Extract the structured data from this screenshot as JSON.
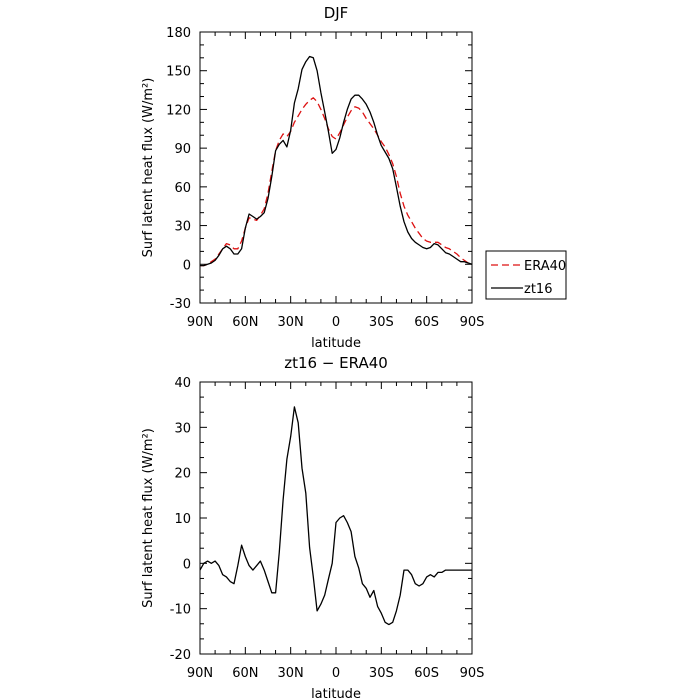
{
  "chart_data": [
    {
      "type": "line",
      "title": "DJF",
      "xlabel": "latitude",
      "ylabel": "Surf latent heat flux (W/m²)",
      "xlim": [
        90,
        -90
      ],
      "ylim": [
        -30,
        180
      ],
      "yticks": [
        -30,
        0,
        30,
        60,
        90,
        120,
        150,
        180
      ],
      "xticks": [
        {
          "value": 90,
          "label": "90N"
        },
        {
          "value": 60,
          "label": "60N"
        },
        {
          "value": 30,
          "label": "30N"
        },
        {
          "value": 0,
          "label": "0"
        },
        {
          "value": -30,
          "label": "30S"
        },
        {
          "value": -60,
          "label": "60S"
        },
        {
          "value": -90,
          "label": "90S"
        }
      ],
      "legend": "outside-right",
      "series": [
        {
          "name": "ERA40",
          "color": "#dd1111",
          "dash": true,
          "x": [
            90,
            87.5,
            85,
            82.5,
            80,
            77.5,
            75,
            72.5,
            70,
            67.5,
            65,
            62.5,
            60,
            57.5,
            55,
            52.5,
            50,
            47.5,
            45,
            42.5,
            40,
            37.5,
            35,
            32.5,
            30,
            27.5,
            25,
            22.5,
            20,
            17.5,
            15,
            12.5,
            10,
            7.5,
            5,
            2.5,
            0,
            -2.5,
            -5,
            -7.5,
            -10,
            -12.5,
            -15,
            -17.5,
            -20,
            -22.5,
            -25,
            -27.5,
            -30,
            -32.5,
            -35,
            -37.5,
            -40,
            -42.5,
            -45,
            -47.5,
            -50,
            -52.5,
            -55,
            -57.5,
            -60,
            -62.5,
            -65,
            -67.5,
            -70,
            -72.5,
            -75,
            -77.5,
            -80,
            -82.5,
            -85,
            -87.5,
            -90
          ],
          "y": [
            -1,
            -1,
            0,
            2,
            4,
            8,
            12,
            16,
            15,
            12,
            12,
            18,
            28,
            36,
            35,
            34,
            38,
            43,
            55,
            72,
            88,
            96,
            101,
            99,
            103,
            110,
            115,
            120,
            124,
            127,
            129,
            126,
            120,
            113,
            105,
            99,
            97,
            102,
            108,
            114,
            119,
            122,
            121,
            118,
            113,
            109,
            105,
            100,
            95,
            91,
            85,
            78,
            68,
            55,
            45,
            38,
            33,
            28,
            24,
            20,
            18,
            17,
            17,
            17,
            15,
            13,
            12,
            10,
            8,
            5,
            3,
            1,
            0
          ]
        },
        {
          "name": "zt16",
          "color": "#000000",
          "dash": false,
          "x": [
            90,
            87.5,
            85,
            82.5,
            80,
            77.5,
            75,
            72.5,
            70,
            67.5,
            65,
            62.5,
            60,
            57.5,
            55,
            52.5,
            50,
            47.5,
            45,
            42.5,
            40,
            37.5,
            35,
            32.5,
            30,
            27.5,
            25,
            22.5,
            20,
            17.5,
            15,
            12.5,
            10,
            7.5,
            5,
            2.5,
            0,
            -2.5,
            -5,
            -7.5,
            -10,
            -12.5,
            -15,
            -17.5,
            -20,
            -22.5,
            -25,
            -27.5,
            -30,
            -32.5,
            -35,
            -37.5,
            -40,
            -42.5,
            -45,
            -47.5,
            -50,
            -52.5,
            -55,
            -57.5,
            -60,
            -62.5,
            -65,
            -67.5,
            -70,
            -72.5,
            -75,
            -77.5,
            -80,
            -82.5,
            -85,
            -87.5,
            -90
          ],
          "y": [
            -1,
            -1,
            0,
            1,
            3,
            7,
            12,
            14,
            12,
            8,
            8,
            12,
            28,
            39,
            37,
            35,
            37,
            40,
            51,
            68,
            88,
            93,
            96,
            91,
            104,
            125,
            136,
            151,
            157,
            161,
            160,
            150,
            133,
            118,
            103,
            86,
            89,
            98,
            110,
            120,
            128,
            131,
            131,
            128,
            124,
            118,
            110,
            100,
            92,
            87,
            82,
            74,
            60,
            45,
            33,
            25,
            20,
            17,
            15,
            13,
            12,
            13,
            16,
            15,
            12,
            9,
            8,
            6,
            4,
            2,
            2,
            1,
            0
          ]
        }
      ]
    },
    {
      "type": "line",
      "title": "zt16 − ERA40",
      "xlabel": "latitude",
      "ylabel": "Surf latent heat flux (W/m²)",
      "xlim": [
        90,
        -90
      ],
      "ylim": [
        -20,
        40
      ],
      "yticks": [
        -20,
        -10,
        0,
        10,
        20,
        30,
        40
      ],
      "xticks": [
        {
          "value": 90,
          "label": "90N"
        },
        {
          "value": 60,
          "label": "60N"
        },
        {
          "value": 30,
          "label": "30N"
        },
        {
          "value": 0,
          "label": "0"
        },
        {
          "value": -30,
          "label": "30S"
        },
        {
          "value": -60,
          "label": "60S"
        },
        {
          "value": -90,
          "label": "90S"
        }
      ],
      "series": [
        {
          "color": "#000000",
          "dash": false,
          "x": [
            90,
            87.5,
            85,
            82.5,
            80,
            77.5,
            75,
            72.5,
            70,
            67.5,
            65,
            62.5,
            60,
            57.5,
            55,
            52.5,
            50,
            47.5,
            45,
            42.5,
            40,
            37.5,
            35,
            32.5,
            30,
            27.5,
            25,
            22.5,
            20,
            17.5,
            15,
            12.5,
            10,
            7.5,
            5,
            2.5,
            0,
            -2.5,
            -5,
            -7.5,
            -10,
            -12.5,
            -15,
            -17.5,
            -20,
            -22.5,
            -25,
            -27.5,
            -30,
            -32.5,
            -35,
            -37.5,
            -40,
            -42.5,
            -45,
            -47.5,
            -50,
            -52.5,
            -55,
            -57.5,
            -60,
            -62.5,
            -65,
            -67.5,
            -70,
            -72.5,
            -75,
            -77.5,
            -80,
            -82.5,
            -85,
            -87.5,
            -90
          ],
          "y": [
            -1.5,
            0,
            0.5,
            0,
            0.5,
            -0.5,
            -2.5,
            -3,
            -4,
            -4.5,
            -0.5,
            4,
            1.5,
            -0.5,
            -1.5,
            -0.5,
            0.5,
            -1.5,
            -4,
            -6.5,
            -6.5,
            2.5,
            14,
            23,
            28,
            34.5,
            31,
            21,
            15.5,
            3.5,
            -3,
            -10.5,
            -9,
            -7,
            -3.5,
            0,
            9,
            10,
            10.5,
            9,
            7,
            1.5,
            -1,
            -4.5,
            -5.5,
            -7.5,
            -6,
            -9.5,
            -11,
            -13,
            -13.5,
            -13,
            -10.5,
            -7,
            -1.5,
            -1.5,
            -2.5,
            -4.5,
            -5,
            -4.5,
            -3,
            -2.5,
            -3,
            -2,
            -2,
            -1.5,
            -1.5,
            -1.5,
            -1.5,
            -1.5,
            -1.5,
            -1.5,
            -1.5
          ]
        }
      ]
    }
  ]
}
